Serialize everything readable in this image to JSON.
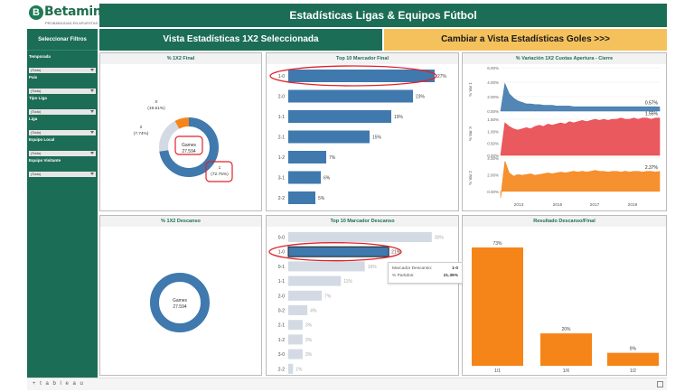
{
  "brand": {
    "name": "Betaminic",
    "initial": "B",
    "tagline": "PROBABILIDAD EN APUESTAS"
  },
  "header": {
    "title": "Estadísticas Ligas & Equipos Fútbol"
  },
  "sidebar": {
    "title": "Seleccionar Filtros",
    "filters": [
      {
        "label": "Temporada",
        "value": "(Todo)"
      },
      {
        "label": "País",
        "value": "(Todo)"
      },
      {
        "label": "Tipo Liga",
        "value": "(Todo)"
      },
      {
        "label": "Liga",
        "value": "(Todo)"
      },
      {
        "label": "Equipo Local",
        "value": "(Todo)"
      },
      {
        "label": "Equipo Visitante",
        "value": "(Todo)"
      }
    ]
  },
  "tabs": {
    "active": "Vista Estadísticas 1X2 Seleccionada",
    "switch": "Cambiar a Vista Estadísticas Goles >>>"
  },
  "colors": {
    "green": "#1c6d55",
    "blue": "#3f79ad",
    "orange": "#f58518",
    "red": "#e8474d",
    "gray": "#d3dae3",
    "highlight": "#e4202a",
    "gold": "#f4c15c"
  },
  "panels": {
    "donut_final": {
      "title": "% 1X2 Final"
    },
    "top10_final": {
      "title": "Top 10 Marcador Final"
    },
    "variation": {
      "title": "% Variación 1X2 Cuotas Apertura - Cierre"
    },
    "donut_half": {
      "title": "% 1X2 Descanso"
    },
    "top10_half": {
      "title": "Top 10 Marcador Descanso"
    },
    "ht_ft": {
      "title": "Resultado Descanso/Final"
    }
  },
  "tooltip": {
    "rows": [
      {
        "label": "Marcador Descanso:",
        "value": "1-0"
      },
      {
        "label": "% Partidos:",
        "value": "21.39%"
      }
    ]
  },
  "footer": {
    "logo_text": "+ t a b l e a u"
  },
  "chart_data": [
    {
      "id": "donut_final",
      "type": "pie",
      "title": "% 1X2 Final",
      "center_label": "Games",
      "center_value": "27.594",
      "slices": [
        {
          "name": "1",
          "value": 72.75,
          "label": "(72.75%)",
          "color": "#3f79ad"
        },
        {
          "name": "X",
          "value": 19.51,
          "label": "(19.51%)",
          "color": "#d3dae3"
        },
        {
          "name": "2",
          "value": 7.74,
          "label": "(7.74%)",
          "color": "#f58518"
        }
      ]
    },
    {
      "id": "top10_final",
      "type": "bar",
      "title": "Top 10 Marcador Final",
      "categories": [
        "1-0",
        "2-0",
        "1-1",
        "2-1",
        "1-2",
        "3-1",
        "2-2"
      ],
      "values": [
        27,
        23,
        19,
        15,
        7,
        6,
        5
      ],
      "value_labels": [
        "27%",
        "23%",
        "19%",
        "15%",
        "7%",
        "6%",
        "5%"
      ],
      "xlim": [
        0,
        30
      ]
    },
    {
      "id": "variation",
      "type": "area",
      "title": "% Variación 1X2 Cuotas Apertura - Cierre",
      "x_ticks": [
        "2013",
        "2015",
        "2017",
        "2019"
      ],
      "series": [
        {
          "name": "% Var 1",
          "axis_label": "% Var 1",
          "y_ticks": [
            "6.00%",
            "4.00%",
            "2.00%",
            "0.00%"
          ],
          "ylim": [
            0,
            6
          ],
          "last_label": "0.57%",
          "color": "#3f79ad",
          "values": [
            0.0,
            3.8,
            2.4,
            1.8,
            1.4,
            1.2,
            1.0,
            1.0,
            0.9,
            0.9,
            0.8,
            0.8,
            0.8,
            0.7,
            0.7,
            0.7,
            0.7,
            0.6,
            0.6,
            0.6,
            0.6,
            0.6,
            0.6,
            0.6,
            0.6,
            0.6,
            0.6,
            0.6,
            0.6,
            0.6,
            0.6,
            0.6,
            0.6,
            0.6,
            0.6,
            0.6,
            0.6,
            0.57
          ]
        },
        {
          "name": "% Var X",
          "axis_label": "% Var X",
          "y_ticks": [
            "1.50%",
            "1.00%",
            "0.50%",
            "0.00%"
          ],
          "ylim": [
            0,
            1.8
          ],
          "last_label": "1.55%",
          "color": "#e8474d",
          "values": [
            0.0,
            1.35,
            1.2,
            1.1,
            1.05,
            1.1,
            1.15,
            1.1,
            1.2,
            1.25,
            1.2,
            1.3,
            1.25,
            1.3,
            1.35,
            1.3,
            1.4,
            1.35,
            1.4,
            1.45,
            1.4,
            1.45,
            1.5,
            1.45,
            1.5,
            1.45,
            1.5,
            1.5,
            1.55,
            1.5,
            1.5,
            1.55,
            1.5,
            1.55,
            1.55,
            1.5,
            1.55,
            1.55
          ]
        },
        {
          "name": "% Var 2",
          "axis_label": "% Var 2",
          "y_ticks": [
            "4.00%",
            "2.00%",
            "0.00%"
          ],
          "ylim": [
            -1,
            4.2
          ],
          "last_label": "2.37%",
          "color": "#f58518",
          "values": [
            -0.8,
            3.6,
            2.2,
            1.8,
            2.0,
            1.9,
            2.0,
            2.1,
            1.9,
            2.0,
            2.1,
            2.2,
            2.1,
            2.2,
            2.3,
            2.2,
            2.3,
            2.4,
            2.3,
            2.4,
            2.3,
            2.4,
            2.5,
            2.4,
            2.4,
            2.3,
            2.4,
            2.4,
            2.3,
            2.4,
            2.3,
            2.4,
            2.4,
            2.3,
            2.4,
            2.4,
            2.3,
            2.37
          ]
        }
      ]
    },
    {
      "id": "donut_half",
      "type": "pie",
      "title": "% 1X2 Descanso",
      "center_label": "Games",
      "center_value": "27.594",
      "slices": [
        {
          "name": "1",
          "value": 100,
          "label": "",
          "color": "#3f79ad"
        }
      ]
    },
    {
      "id": "top10_half",
      "type": "bar",
      "title": "Top 10 Marcador Descanso",
      "categories": [
        "0-0",
        "1-0",
        "0-1",
        "1-1",
        "2-0",
        "0-2",
        "2-1",
        "1-2",
        "3-0",
        "2-2"
      ],
      "values": [
        30,
        21,
        16,
        11,
        7,
        4,
        3,
        3,
        3,
        1
      ],
      "value_labels": [
        "30%",
        "21%",
        "16%",
        "11%",
        "7%",
        "4%",
        "3%",
        "3%",
        "3%",
        "1%"
      ],
      "xlim": [
        0,
        34
      ],
      "highlight_index": 1
    },
    {
      "id": "ht_ft",
      "type": "bar",
      "title": "Resultado Descanso/Final",
      "categories": [
        "1/1",
        "1/X",
        "1/2"
      ],
      "values": [
        73,
        20,
        8
      ],
      "value_labels": [
        "73%",
        "20%",
        "8%"
      ],
      "ylim": [
        0,
        78
      ]
    }
  ]
}
